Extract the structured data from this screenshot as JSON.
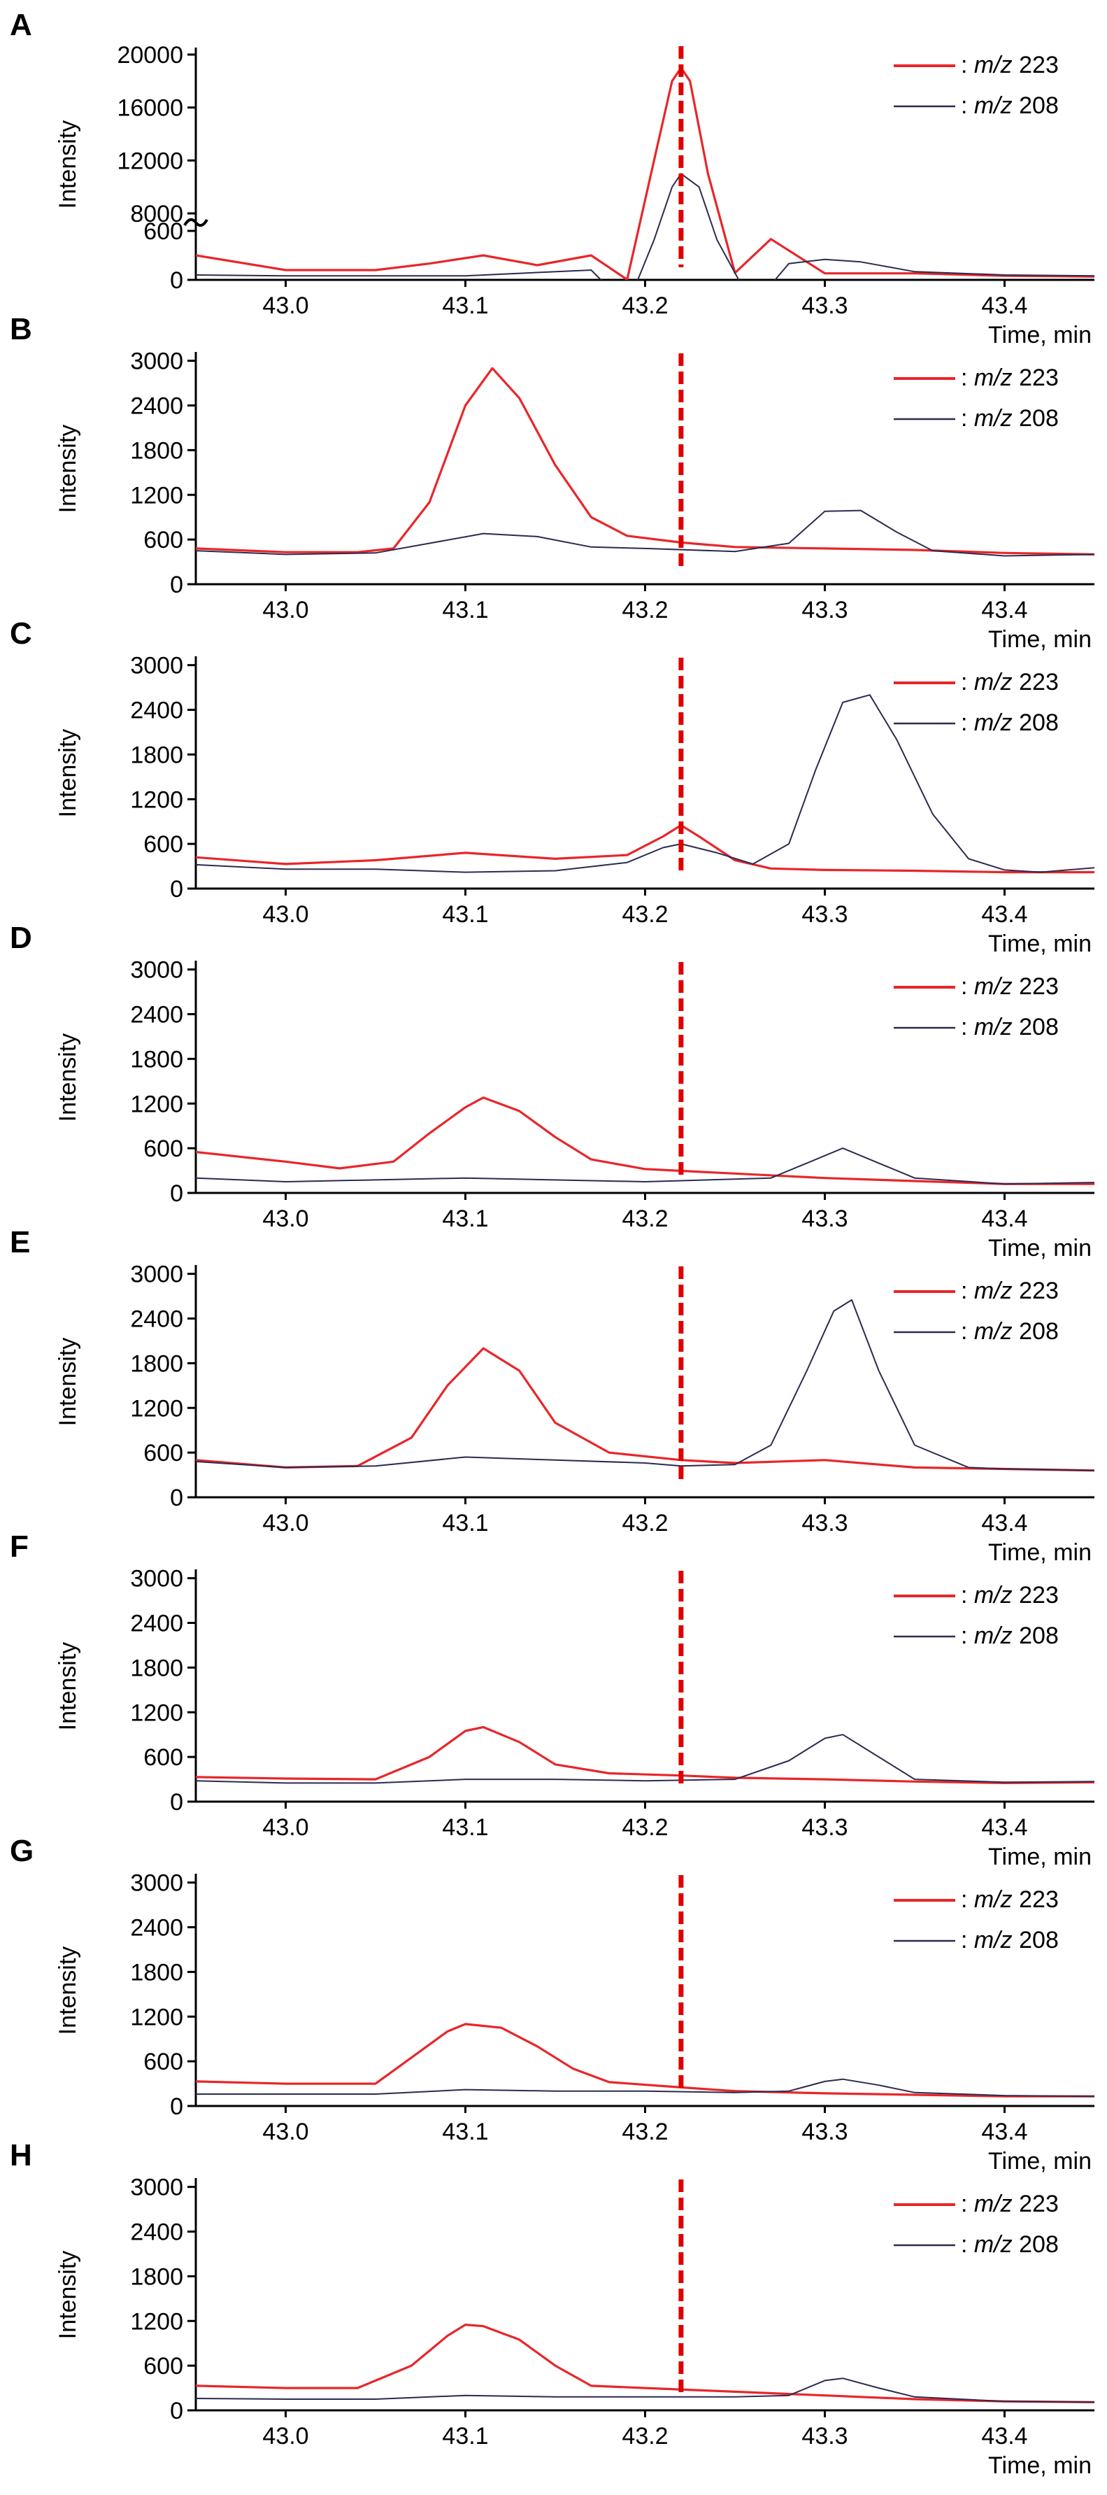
{
  "figure": {
    "colors": {
      "mz223": "#e8262a",
      "mz208": "#2b2b50",
      "marker": "#e00000",
      "axis": "#000000"
    }
  },
  "chart_data": [
    {
      "panel": "A",
      "type": "line",
      "ylabel": "Intensity",
      "xlabel": "Time, min",
      "xlim": [
        42.95,
        43.45
      ],
      "x_ticks": [
        "43.0",
        "43.1",
        "43.2",
        "43.3",
        "43.4"
      ],
      "y_scale": "broken",
      "y_ticks": [
        "0",
        "600",
        "8000",
        "12000",
        "16000",
        "20000"
      ],
      "marker_time": 43.22,
      "legend": [
        {
          "prefix": ": ",
          "italic": "m/z",
          "value": " 223"
        },
        {
          "prefix": ": ",
          "italic": "m/z",
          "value": " 208"
        }
      ],
      "series": [
        {
          "name": "m/z 223",
          "x": [
            42.95,
            43.0,
            43.05,
            43.08,
            43.11,
            43.14,
            43.17,
            43.19,
            43.205,
            43.215,
            43.22,
            43.225,
            43.235,
            43.25,
            43.27,
            43.3,
            43.35,
            43.4,
            43.45
          ],
          "y": [
            300,
            120,
            120,
            200,
            300,
            180,
            300,
            3000,
            12000,
            18000,
            19000,
            18000,
            11000,
            3500,
            500,
            80,
            80,
            50,
            40
          ]
        },
        {
          "name": "m/z 208",
          "x": [
            42.95,
            43.0,
            43.1,
            43.17,
            43.19,
            43.205,
            43.215,
            43.22,
            43.23,
            43.24,
            43.26,
            43.28,
            43.3,
            43.32,
            43.35,
            43.4,
            43.45
          ],
          "y": [
            60,
            50,
            50,
            120,
            1000,
            6000,
            10000,
            11000,
            10000,
            6000,
            1000,
            200,
            250,
            220,
            100,
            60,
            50
          ]
        }
      ]
    },
    {
      "panel": "B",
      "type": "line",
      "ylabel": "Intensity",
      "xlabel": "Time, min",
      "xlim": [
        42.95,
        43.45
      ],
      "ylim": [
        0,
        3100
      ],
      "x_ticks": [
        "43.0",
        "43.1",
        "43.2",
        "43.3",
        "43.4"
      ],
      "y_ticks": [
        "0",
        "600",
        "1200",
        "1800",
        "2400",
        "3000"
      ],
      "marker_time": 43.22,
      "legend": [
        {
          "prefix": ": ",
          "italic": "m/z",
          "value": " 223"
        },
        {
          "prefix": ": ",
          "italic": "m/z",
          "value": " 208"
        }
      ],
      "series": [
        {
          "name": "m/z 223",
          "x": [
            42.95,
            43.0,
            43.04,
            43.06,
            43.08,
            43.1,
            43.115,
            43.13,
            43.15,
            43.17,
            43.19,
            43.22,
            43.25,
            43.3,
            43.35,
            43.4,
            43.45
          ],
          "y": [
            480,
            430,
            430,
            480,
            1100,
            2400,
            2900,
            2500,
            1600,
            900,
            650,
            560,
            500,
            480,
            460,
            420,
            400
          ]
        },
        {
          "name": "m/z 208",
          "x": [
            42.95,
            43.0,
            43.05,
            43.08,
            43.11,
            43.14,
            43.17,
            43.2,
            43.25,
            43.28,
            43.3,
            43.32,
            43.34,
            43.36,
            43.4,
            43.45
          ],
          "y": [
            450,
            400,
            420,
            550,
            680,
            640,
            500,
            480,
            440,
            550,
            980,
            990,
            700,
            450,
            380,
            400
          ]
        }
      ]
    },
    {
      "panel": "C",
      "type": "line",
      "ylabel": "Intensity",
      "xlabel": "Time, min",
      "xlim": [
        42.95,
        43.45
      ],
      "ylim": [
        0,
        3100
      ],
      "x_ticks": [
        "43.0",
        "43.1",
        "43.2",
        "43.3",
        "43.4"
      ],
      "y_ticks": [
        "0",
        "600",
        "1200",
        "1800",
        "2400",
        "3000"
      ],
      "marker_time": 43.22,
      "legend": [
        {
          "prefix": ": ",
          "italic": "m/z",
          "value": " 223"
        },
        {
          "prefix": ": ",
          "italic": "m/z",
          "value": " 208"
        }
      ],
      "series": [
        {
          "name": "m/z 223",
          "x": [
            42.95,
            43.0,
            43.05,
            43.1,
            43.15,
            43.19,
            43.21,
            43.22,
            43.23,
            43.25,
            43.27,
            43.3,
            43.35,
            43.4,
            43.45
          ],
          "y": [
            420,
            330,
            380,
            480,
            400,
            450,
            700,
            850,
            700,
            380,
            270,
            250,
            240,
            220,
            220
          ]
        },
        {
          "name": "m/z 208",
          "x": [
            42.95,
            43.0,
            43.05,
            43.1,
            43.15,
            43.19,
            43.21,
            43.22,
            43.24,
            43.26,
            43.28,
            43.295,
            43.31,
            43.325,
            43.34,
            43.36,
            43.38,
            43.4,
            43.42,
            43.45
          ],
          "y": [
            320,
            260,
            260,
            220,
            240,
            350,
            550,
            600,
            480,
            330,
            600,
            1600,
            2500,
            2600,
            2000,
            1000,
            400,
            250,
            220,
            280
          ]
        }
      ]
    },
    {
      "panel": "D",
      "type": "line",
      "ylabel": "Intensity",
      "xlabel": "Time, min",
      "xlim": [
        42.95,
        43.45
      ],
      "ylim": [
        0,
        3100
      ],
      "x_ticks": [
        "43.0",
        "43.1",
        "43.2",
        "43.3",
        "43.4"
      ],
      "y_ticks": [
        "0",
        "600",
        "1200",
        "1800",
        "2400",
        "3000"
      ],
      "marker_time": 43.22,
      "legend": [
        {
          "prefix": ": ",
          "italic": "m/z",
          "value": " 223"
        },
        {
          "prefix": ": ",
          "italic": "m/z",
          "value": " 208"
        }
      ],
      "series": [
        {
          "name": "m/z 223",
          "x": [
            42.95,
            43.0,
            43.03,
            43.06,
            43.08,
            43.1,
            43.11,
            43.13,
            43.15,
            43.17,
            43.2,
            43.25,
            43.3,
            43.35,
            43.4,
            43.45
          ],
          "y": [
            550,
            420,
            330,
            420,
            800,
            1150,
            1280,
            1100,
            750,
            450,
            320,
            260,
            200,
            160,
            120,
            120
          ]
        },
        {
          "name": "m/z 208",
          "x": [
            42.95,
            43.0,
            43.1,
            43.2,
            43.27,
            43.29,
            43.31,
            43.33,
            43.35,
            43.4,
            43.45
          ],
          "y": [
            200,
            150,
            200,
            150,
            200,
            400,
            600,
            400,
            200,
            120,
            140
          ]
        }
      ]
    },
    {
      "panel": "E",
      "type": "line",
      "ylabel": "Intensity",
      "xlabel": "Time, min",
      "xlim": [
        42.95,
        43.45
      ],
      "ylim": [
        0,
        3100
      ],
      "x_ticks": [
        "43.0",
        "43.1",
        "43.2",
        "43.3",
        "43.4"
      ],
      "y_ticks": [
        "0",
        "600",
        "1200",
        "1800",
        "2400",
        "3000"
      ],
      "marker_time": 43.22,
      "legend": [
        {
          "prefix": ": ",
          "italic": "m/z",
          "value": " 223"
        },
        {
          "prefix": ": ",
          "italic": "m/z",
          "value": " 208"
        }
      ],
      "series": [
        {
          "name": "m/z 223",
          "x": [
            42.95,
            43.0,
            43.04,
            43.07,
            43.09,
            43.11,
            43.13,
            43.15,
            43.18,
            43.22,
            43.25,
            43.3,
            43.35,
            43.4,
            43.45
          ],
          "y": [
            500,
            400,
            420,
            800,
            1500,
            2000,
            1700,
            1000,
            600,
            500,
            460,
            500,
            400,
            380,
            360
          ]
        },
        {
          "name": "m/z 208",
          "x": [
            42.95,
            43.0,
            43.05,
            43.1,
            43.15,
            43.2,
            43.22,
            43.25,
            43.27,
            43.29,
            43.305,
            43.315,
            43.33,
            43.35,
            43.38,
            43.4,
            43.45
          ],
          "y": [
            480,
            400,
            420,
            540,
            500,
            460,
            420,
            440,
            700,
            1700,
            2500,
            2650,
            1700,
            700,
            400,
            380,
            360
          ]
        }
      ]
    },
    {
      "panel": "F",
      "type": "line",
      "ylabel": "Intensity",
      "xlabel": "Time, min",
      "xlim": [
        42.95,
        43.45
      ],
      "ylim": [
        0,
        3100
      ],
      "x_ticks": [
        "43.0",
        "43.1",
        "43.2",
        "43.3",
        "43.4"
      ],
      "y_ticks": [
        "0",
        "600",
        "1200",
        "1800",
        "2400",
        "3000"
      ],
      "marker_time": 43.22,
      "legend": [
        {
          "prefix": ": ",
          "italic": "m/z",
          "value": " 223"
        },
        {
          "prefix": ": ",
          "italic": "m/z",
          "value": " 208"
        }
      ],
      "series": [
        {
          "name": "m/z 223",
          "x": [
            42.95,
            43.0,
            43.05,
            43.08,
            43.1,
            43.11,
            43.13,
            43.15,
            43.18,
            43.22,
            43.25,
            43.3,
            43.35,
            43.4,
            43.45
          ],
          "y": [
            330,
            310,
            300,
            600,
            950,
            1000,
            800,
            500,
            380,
            350,
            320,
            300,
            270,
            250,
            260
          ]
        },
        {
          "name": "m/z 208",
          "x": [
            42.95,
            43.0,
            43.05,
            43.1,
            43.15,
            43.2,
            43.25,
            43.28,
            43.3,
            43.31,
            43.33,
            43.35,
            43.4,
            43.45
          ],
          "y": [
            280,
            250,
            250,
            300,
            300,
            280,
            300,
            550,
            850,
            900,
            600,
            300,
            260,
            270
          ]
        }
      ]
    },
    {
      "panel": "G",
      "type": "line",
      "ylabel": "Intensity",
      "xlabel": "Time, min",
      "xlim": [
        42.95,
        43.45
      ],
      "ylim": [
        0,
        3100
      ],
      "x_ticks": [
        "43.0",
        "43.1",
        "43.2",
        "43.3",
        "43.4"
      ],
      "y_ticks": [
        "0",
        "600",
        "1200",
        "1800",
        "2400",
        "3000"
      ],
      "marker_time": 43.22,
      "legend": [
        {
          "prefix": ": ",
          "italic": "m/z",
          "value": " 223"
        },
        {
          "prefix": ": ",
          "italic": "m/z",
          "value": " 208"
        }
      ],
      "series": [
        {
          "name": "m/z 223",
          "x": [
            42.95,
            43.0,
            43.05,
            43.07,
            43.09,
            43.1,
            43.12,
            43.14,
            43.16,
            43.18,
            43.22,
            43.25,
            43.3,
            43.35,
            43.4,
            43.45
          ],
          "y": [
            330,
            300,
            300,
            650,
            1000,
            1100,
            1050,
            800,
            500,
            320,
            250,
            200,
            170,
            150,
            130,
            130
          ]
        },
        {
          "name": "m/z 208",
          "x": [
            42.95,
            43.0,
            43.05,
            43.1,
            43.15,
            43.2,
            43.25,
            43.28,
            43.3,
            43.31,
            43.33,
            43.35,
            43.4,
            43.45
          ],
          "y": [
            160,
            160,
            160,
            220,
            200,
            200,
            180,
            200,
            330,
            360,
            280,
            180,
            140,
            130
          ]
        }
      ]
    },
    {
      "panel": "H",
      "type": "line",
      "ylabel": "Intensity",
      "xlabel": "Time, min",
      "xlim": [
        42.95,
        43.45
      ],
      "ylim": [
        0,
        3100
      ],
      "x_ticks": [
        "43.0",
        "43.1",
        "43.2",
        "43.3",
        "43.4"
      ],
      "y_ticks": [
        "0",
        "600",
        "1200",
        "1800",
        "2400",
        "3000"
      ],
      "marker_time": 43.22,
      "legend": [
        {
          "prefix": ": ",
          "italic": "m/z",
          "value": " 223"
        },
        {
          "prefix": ": ",
          "italic": "m/z",
          "value": " 208"
        }
      ],
      "series": [
        {
          "name": "m/z 223",
          "x": [
            42.95,
            43.0,
            43.04,
            43.07,
            43.09,
            43.1,
            43.11,
            43.13,
            43.15,
            43.17,
            43.2,
            43.25,
            43.3,
            43.35,
            43.4,
            43.45
          ],
          "y": [
            330,
            300,
            300,
            600,
            1000,
            1150,
            1130,
            950,
            600,
            330,
            300,
            250,
            200,
            150,
            120,
            110
          ]
        },
        {
          "name": "m/z 208",
          "x": [
            42.95,
            43.0,
            43.05,
            43.1,
            43.15,
            43.2,
            43.25,
            43.28,
            43.3,
            43.31,
            43.33,
            43.35,
            43.4,
            43.45
          ],
          "y": [
            160,
            150,
            150,
            200,
            180,
            180,
            180,
            200,
            400,
            430,
            300,
            180,
            120,
            110
          ]
        }
      ]
    }
  ]
}
